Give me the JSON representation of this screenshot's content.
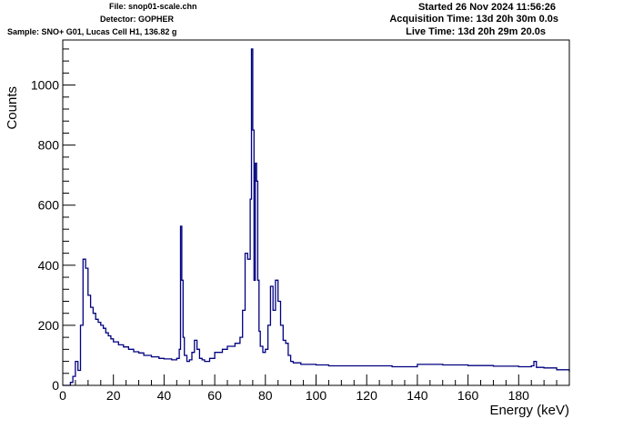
{
  "header": {
    "file": "File: snop01-scale.chn",
    "detector": "Detector: GOPHER",
    "sample": "Sample: SNO+ G01, Lucas Cell H1, 136.82 g",
    "started": "Started 26 Nov 2024 11:56:26",
    "acquisition": "Acquisition Time: 13d 20h 30m 0.0s",
    "live": "Live Time: 13d 20h 29m 20.0s"
  },
  "chart_data": {
    "type": "line",
    "xlabel": "Energy (keV)",
    "ylabel": "Counts",
    "xlim": [
      0,
      200
    ],
    "ylim": [
      0,
      1150
    ],
    "x_ticks": [
      0,
      20,
      40,
      60,
      80,
      100,
      120,
      140,
      160,
      180
    ],
    "y_ticks": [
      0,
      200,
      400,
      600,
      800,
      1000
    ],
    "color": "#000080",
    "series": [
      {
        "x": [
          0,
          3,
          4,
          5,
          6,
          7,
          8,
          9,
          10,
          11,
          12,
          13,
          14,
          15,
          16,
          17,
          18,
          19,
          20,
          22,
          24,
          26,
          28,
          30,
          32,
          35,
          38,
          40,
          43,
          45,
          46,
          46.5,
          47,
          47.5,
          48,
          49,
          50,
          51,
          52,
          53,
          54,
          55,
          56,
          58,
          60,
          63,
          65,
          68,
          70,
          71,
          72,
          73,
          74,
          74.5,
          75,
          75.5,
          76,
          76.5,
          77,
          77.5,
          78,
          79,
          80,
          81,
          82,
          83,
          84,
          85,
          86,
          87,
          88,
          89,
          90,
          91,
          92,
          94,
          97,
          100,
          105,
          110,
          120,
          130,
          140,
          150,
          160,
          170,
          180,
          185,
          186,
          187,
          190,
          195,
          200
        ],
        "y": [
          0,
          10,
          30,
          80,
          50,
          200,
          420,
          390,
          300,
          260,
          240,
          220,
          210,
          200,
          190,
          175,
          165,
          155,
          145,
          135,
          128,
          120,
          112,
          108,
          100,
          95,
          90,
          88,
          85,
          90,
          120,
          530,
          350,
          160,
          100,
          80,
          85,
          110,
          150,
          120,
          90,
          85,
          80,
          90,
          110,
          120,
          130,
          140,
          160,
          250,
          440,
          420,
          620,
          1120,
          850,
          350,
          740,
          680,
          350,
          180,
          130,
          110,
          120,
          200,
          330,
          250,
          350,
          280,
          200,
          150,
          140,
          100,
          80,
          75,
          75,
          70,
          70,
          68,
          65,
          65,
          65,
          62,
          70,
          68,
          66,
          64,
          62,
          65,
          80,
          60,
          58,
          52,
          45
        ]
      }
    ]
  }
}
